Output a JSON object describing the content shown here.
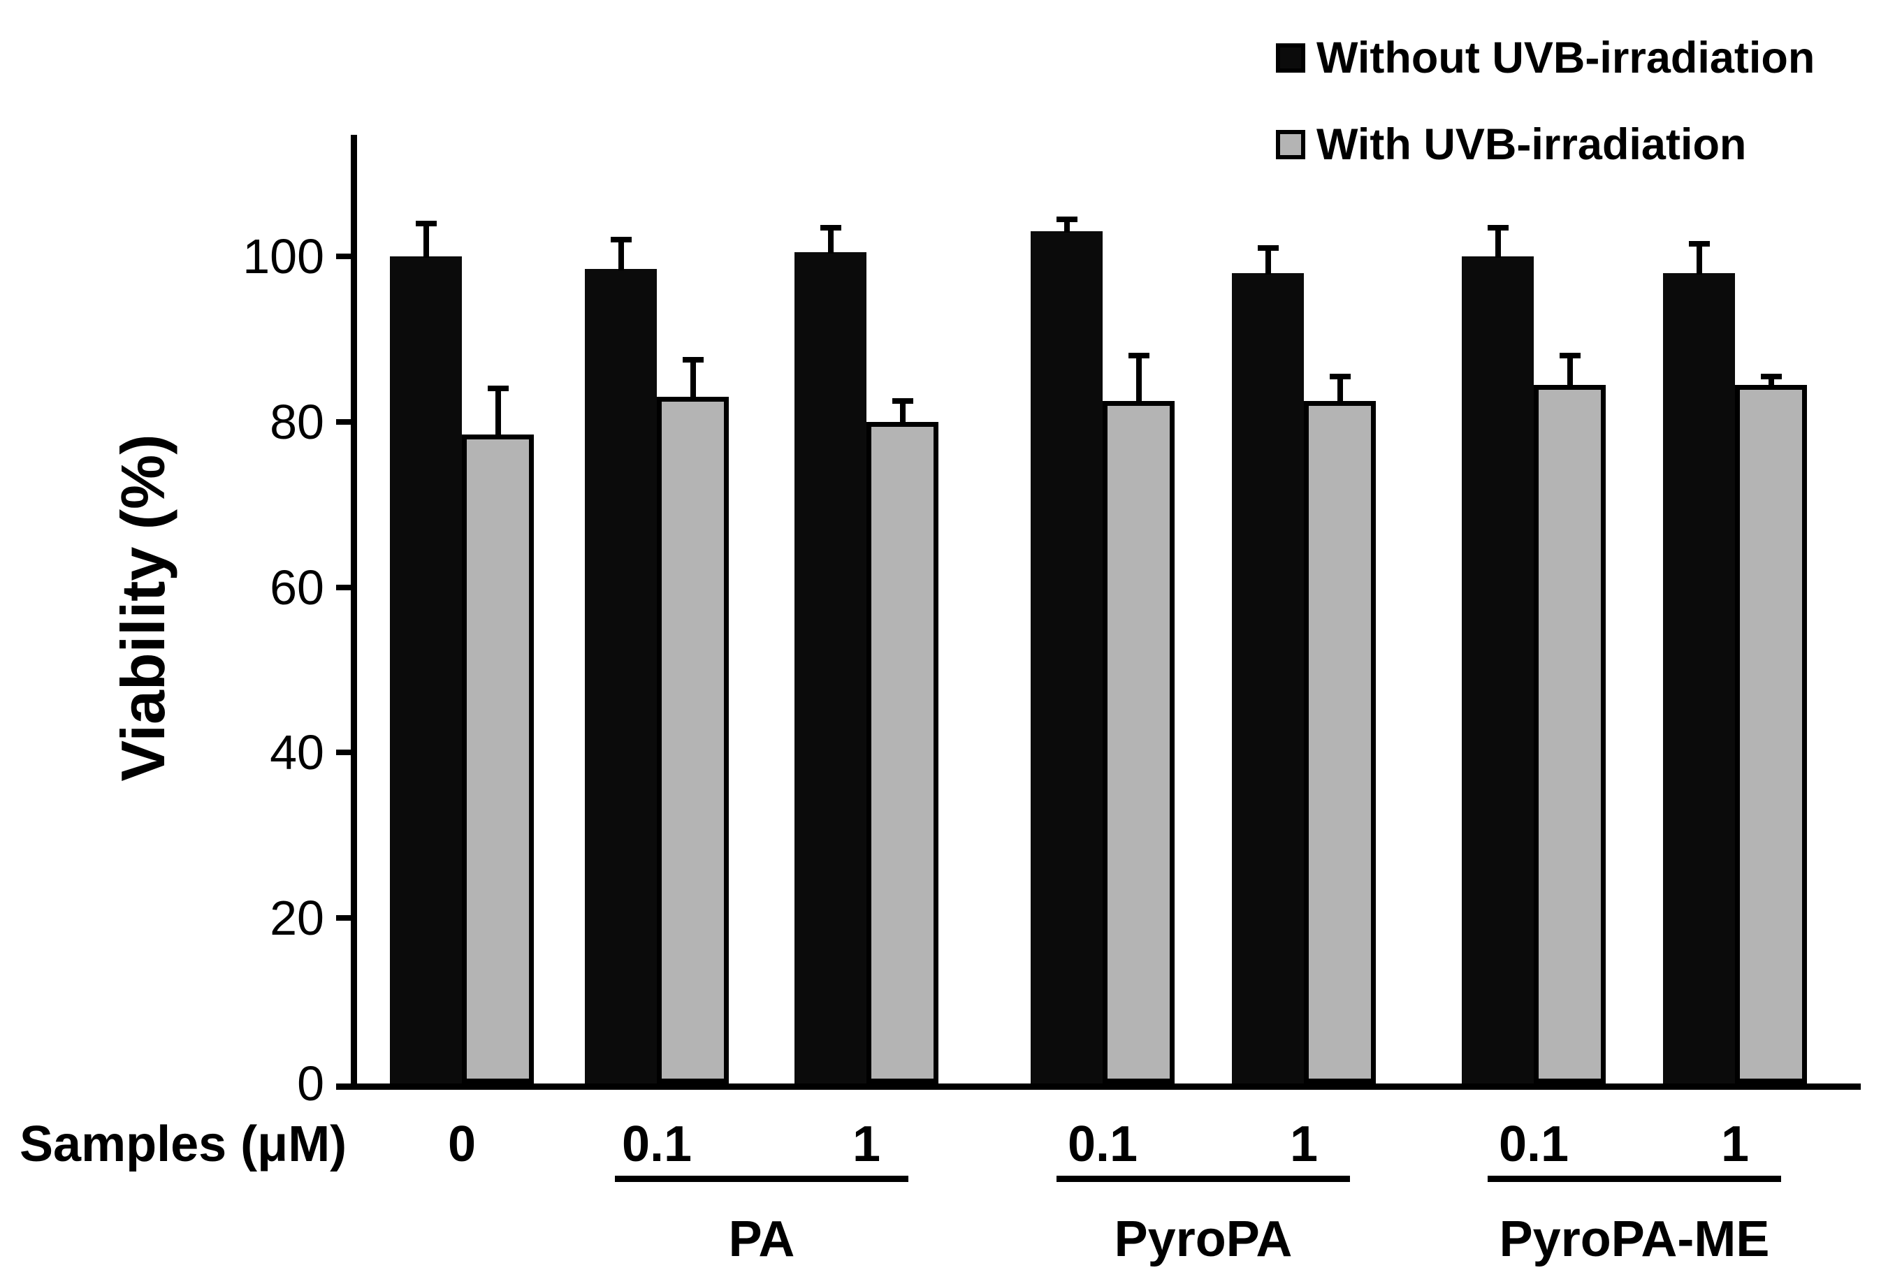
{
  "chart_data": {
    "type": "bar",
    "title": "",
    "ylabel": "Viability (%)",
    "xlabel": "Samples (μM)",
    "ylim": [
      0,
      115
    ],
    "yticks": [
      0,
      20,
      40,
      60,
      80,
      100
    ],
    "grid": false,
    "legend_position": "top-right",
    "categories": [
      {
        "dose": "0",
        "group": ""
      },
      {
        "dose": "0.1",
        "group": "PA"
      },
      {
        "dose": "1",
        "group": "PA"
      },
      {
        "dose": "0.1",
        "group": "PyroPA"
      },
      {
        "dose": "1",
        "group": "PyroPA"
      },
      {
        "dose": "0.1",
        "group": "PyroPA-ME"
      },
      {
        "dose": "1",
        "group": "PyroPA-ME"
      }
    ],
    "series": [
      {
        "name": "Without UVB-irradiation",
        "color": "#0b0b0b",
        "values": [
          100,
          98.5,
          100.5,
          103,
          98,
          100,
          98
        ],
        "errors": [
          4,
          3.5,
          3,
          1.5,
          3,
          3.5,
          3.5
        ]
      },
      {
        "name": "With UVB-irradiation",
        "color": "#b4b4b4",
        "values": [
          78.5,
          83,
          80,
          82.5,
          82.5,
          84.5,
          84.5
        ],
        "errors": [
          5.5,
          4.5,
          2.5,
          5.5,
          3,
          3.5,
          1
        ]
      }
    ],
    "groups": [
      {
        "label": "PA",
        "span": [
          1,
          2
        ]
      },
      {
        "label": "PyroPA",
        "span": [
          3,
          4
        ]
      },
      {
        "label": "PyroPA-ME",
        "span": [
          5,
          6
        ]
      }
    ],
    "error_bar_color": "#000000",
    "axis_color": "#000000"
  }
}
